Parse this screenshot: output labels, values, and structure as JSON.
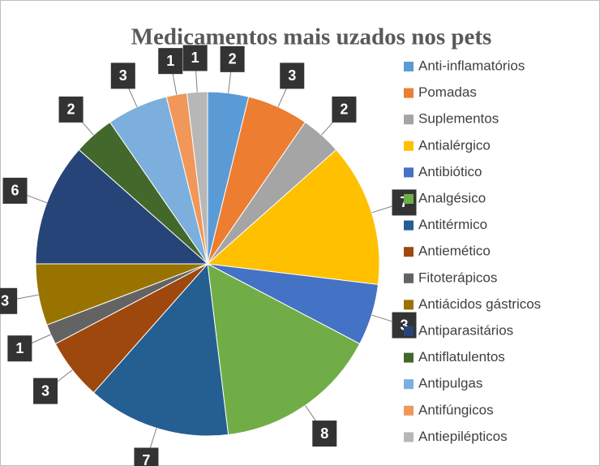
{
  "chart_data": {
    "type": "pie",
    "title": "Medicamentos mais uzados nos  pets",
    "categories": [
      "Anti-inflamatórios",
      "Pomadas",
      "Suplementos",
      "Antialérgico",
      "Antibiótico",
      "Analgésico",
      "Antitérmico",
      "Antiemético",
      "Fitoterápicos",
      "Antiácidos gástricos",
      "Antiparasitários",
      "Antiflatulentos",
      "Antipulgas",
      "Antifúngicos",
      "Antiepilépticos"
    ],
    "values": [
      2,
      3,
      2,
      7,
      3,
      8,
      7,
      3,
      1,
      3,
      6,
      2,
      3,
      1,
      1
    ],
    "colors": [
      "#5B9BD5",
      "#ED7D31",
      "#A5A5A5",
      "#FFC000",
      "#4472C4",
      "#70AD47",
      "#255E91",
      "#9E480E",
      "#636363",
      "#997300",
      "#264478",
      "#43682B",
      "#7CAFDD",
      "#F1975A",
      "#B7B7B7"
    ],
    "legend": "right"
  }
}
